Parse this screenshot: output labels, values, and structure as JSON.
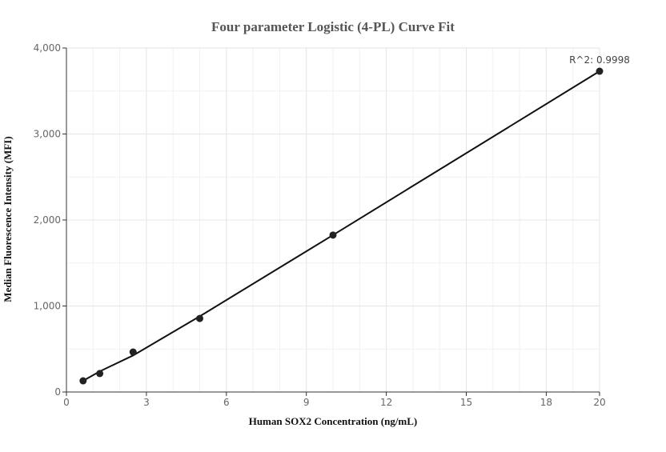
{
  "chart_data": {
    "type": "scatter",
    "title": "Four parameter Logistic (4-PL) Curve Fit",
    "xlabel": "Human SOX2 Concentration (ng/mL)",
    "ylabel": "Median Fluorescence Intensity (MFI)",
    "xlim": [
      0,
      20
    ],
    "ylim": [
      0,
      4000
    ],
    "x_ticks": [
      0,
      3,
      6,
      9,
      12,
      15,
      18,
      20
    ],
    "y_ticks": [
      0,
      1000,
      2000,
      3000,
      4000
    ],
    "x_tick_labels": [
      "0",
      "3",
      "6",
      "9",
      "12",
      "15",
      "18",
      "20"
    ],
    "y_tick_labels": [
      "0",
      "1,000",
      "2,000",
      "3,000",
      "4,000"
    ],
    "grid": true,
    "points": [
      {
        "x": 0.625,
        "y": 130
      },
      {
        "x": 1.25,
        "y": 215
      },
      {
        "x": 2.5,
        "y": 465
      },
      {
        "x": 5,
        "y": 855
      },
      {
        "x": 10,
        "y": 1825
      },
      {
        "x": 20,
        "y": 3730
      }
    ],
    "fit_curve": {
      "x": [
        0.625,
        1.25,
        2.5,
        5,
        10,
        20
      ],
      "y": [
        130,
        240,
        425,
        880,
        1825,
        3730
      ]
    },
    "annotation": "R^2: 0.9998",
    "colors": {
      "points": "#222222",
      "curve": "#111111",
      "grid": "#e6e6e6",
      "axis": "#333333"
    }
  }
}
